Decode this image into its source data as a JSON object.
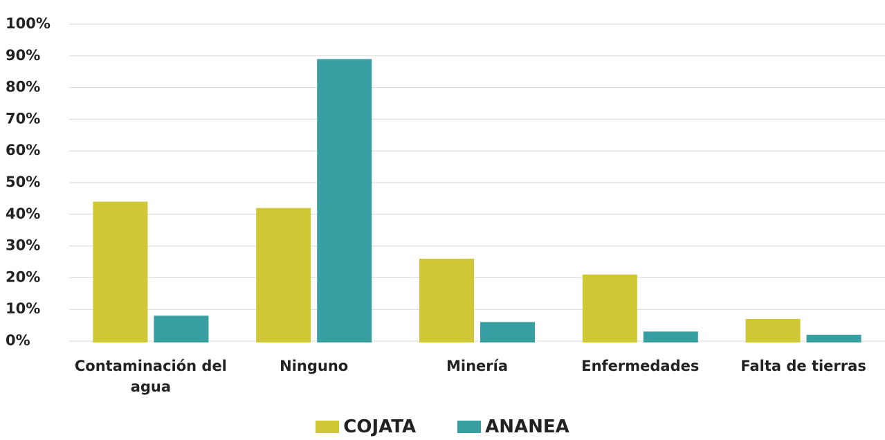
{
  "chart_data": {
    "type": "bar",
    "categories": [
      "Contaminación del agua",
      "Ninguno",
      "Minería",
      "Enfermedades",
      "Falta de tierras"
    ],
    "series": [
      {
        "name": "COJATA",
        "color": "#cfc733",
        "values": [
          44,
          42,
          26,
          21,
          7
        ]
      },
      {
        "name": "ANANEA",
        "color": "#379ea2",
        "values": [
          8,
          89,
          6,
          3,
          2
        ]
      }
    ],
    "ylim": [
      0,
      100
    ],
    "yticks": [
      {
        "value": 0,
        "label": "0%"
      },
      {
        "value": 10,
        "label": "10%"
      },
      {
        "value": 20,
        "label": "20%"
      },
      {
        "value": 30,
        "label": "30%"
      },
      {
        "value": 40,
        "label": "40%"
      },
      {
        "value": 50,
        "label": "50%"
      },
      {
        "value": 60,
        "label": "60%"
      },
      {
        "value": 70,
        "label": "70%"
      },
      {
        "value": 80,
        "label": "80%"
      },
      {
        "value": 90,
        "label": "90%"
      },
      {
        "value": 100,
        "label": "100%"
      }
    ],
    "grid": true
  }
}
